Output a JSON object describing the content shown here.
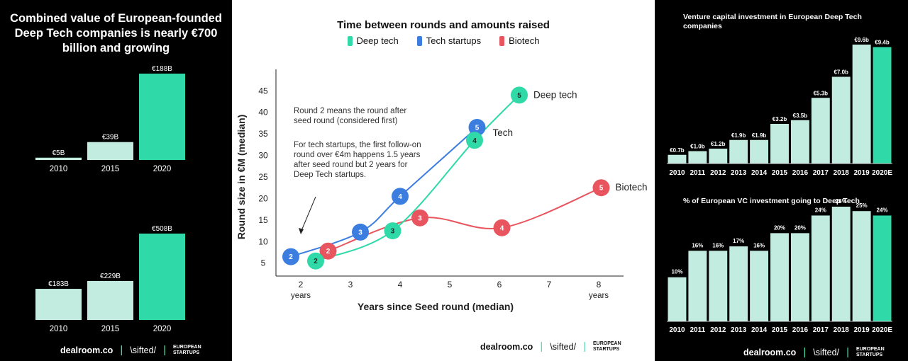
{
  "left_panel": {
    "title": "Combined value of European-founded Deep Tech companies is nearly €700 billion and growing",
    "footer": {
      "brand1": "dealroom.co",
      "brand2": "\\sifted/",
      "brand3": "EUROPEAN STARTUPS"
    }
  },
  "mid_panel": {
    "footer": {
      "brand1": "dealroom.co",
      "brand2": "\\sifted/",
      "brand3": "EUROPEAN STARTUPS"
    },
    "annotation1": "Round 2 means the round after seed round (considered first)",
    "annotation2": "For tech startups, the first follow-on round over €4m happens 1.5 years after seed round but 2 years for Deep Tech startups."
  },
  "right_panel": {
    "footer": {
      "brand1": "dealroom.co",
      "brand2": "\\sifted/",
      "brand3": "EUROPEAN STARTUPS"
    }
  },
  "colors": {
    "light_mint": "#c3ece0",
    "bright_teal": "#2fd9a8",
    "deep_tech": "#2fd9a8",
    "tech_startups": "#3c7de0",
    "biotech": "#e8555f"
  },
  "chart_data": [
    {
      "type": "bar",
      "title": "",
      "categories": [
        "2010",
        "2015",
        "2020"
      ],
      "labels": [
        "€5B",
        "€39B",
        "€188B"
      ],
      "values": [
        5,
        39,
        188
      ],
      "highlight_index": 2
    },
    {
      "type": "bar",
      "title": "",
      "categories": [
        "2010",
        "2015",
        "2020"
      ],
      "labels": [
        "€183B",
        "€229B",
        "€508B"
      ],
      "values": [
        183,
        229,
        508
      ],
      "highlight_index": 2
    },
    {
      "type": "line",
      "title": "Time between rounds and amounts raised",
      "xlabel": "Years since Seed round (median)",
      "ylabel": "Round size in €M (median)",
      "xlim": [
        1.5,
        8.5
      ],
      "ylim": [
        2,
        48
      ],
      "x_ticks": [
        "2",
        "3",
        "4",
        "5",
        "6",
        "7",
        "8"
      ],
      "x_tick_values": [
        2,
        3,
        4,
        5,
        6,
        7,
        8
      ],
      "x_sub_labels": {
        "first": "years",
        "last": "years"
      },
      "y_ticks": [
        "5",
        "10",
        "15",
        "20",
        "25",
        "30",
        "35",
        "40",
        "45"
      ],
      "y_tick_values": [
        5,
        10,
        15,
        20,
        25,
        30,
        35,
        40,
        45
      ],
      "series": [
        {
          "name": "Deep tech",
          "end_label": "Deep tech",
          "color": "#2fd9a8",
          "points": [
            {
              "x": 2.3,
              "y": 5.5,
              "round": "2"
            },
            {
              "x": 3.85,
              "y": 12.5,
              "round": "3"
            },
            {
              "x": 5.5,
              "y": 33.5,
              "round": "4"
            },
            {
              "x": 6.4,
              "y": 44,
              "round": "5"
            }
          ]
        },
        {
          "name": "Tech startups",
          "end_label": "Tech",
          "color": "#3c7de0",
          "points": [
            {
              "x": 1.8,
              "y": 6.5,
              "round": "2"
            },
            {
              "x": 3.2,
              "y": 12.2,
              "round": "3"
            },
            {
              "x": 4.0,
              "y": 20.5,
              "round": "4"
            },
            {
              "x": 5.55,
              "y": 36.5,
              "round": "5"
            }
          ]
        },
        {
          "name": "Biotech",
          "end_label": "Biotech",
          "color": "#e8555f",
          "points": [
            {
              "x": 2.55,
              "y": 7.8,
              "round": "2"
            },
            {
              "x": 4.4,
              "y": 15.5,
              "round": "3"
            },
            {
              "x": 6.05,
              "y": 13.2,
              "round": "4"
            },
            {
              "x": 8.05,
              "y": 22.5,
              "round": "5"
            }
          ]
        }
      ]
    },
    {
      "type": "bar",
      "title": "Venture capital investment in European Deep Tech companies",
      "categories": [
        "2010",
        "2011",
        "2012",
        "2013",
        "2014",
        "2015",
        "2016",
        "2017",
        "2018",
        "2019",
        "2020E"
      ],
      "labels": [
        "€0.7b",
        "€1.0b",
        "€1.2b",
        "€1.9b",
        "€1.9b",
        "€3.2b",
        "€3.5b",
        "€5.3b",
        "€7.0b",
        "€9.6b",
        "€9.4b"
      ],
      "values": [
        0.7,
        1.0,
        1.2,
        1.9,
        1.9,
        3.2,
        3.5,
        5.3,
        7.0,
        9.6,
        9.4
      ],
      "highlight_index": 10
    },
    {
      "type": "bar",
      "title": "% of European VC investment going to Deep Tech",
      "categories": [
        "2010",
        "2011",
        "2012",
        "2013",
        "2014",
        "2015",
        "2016",
        "2017",
        "2018",
        "2019",
        "2020E"
      ],
      "labels": [
        "10%",
        "16%",
        "16%",
        "17%",
        "16%",
        "20%",
        "20%",
        "24%",
        "26%",
        "25%",
        "24%"
      ],
      "values": [
        10,
        16,
        16,
        17,
        16,
        20,
        20,
        24,
        26,
        25,
        24
      ],
      "highlight_index": 10
    }
  ]
}
